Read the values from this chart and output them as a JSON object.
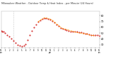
{
  "title_line1": "Milwaukee Weather - Outdoor Temp & Heat Index -",
  "title_line2": "per Minute (24 Hours)",
  "bg_color": "#ffffff",
  "temp_color": "#cc0000",
  "heat_color": "#ff9900",
  "vline_color": "#999999",
  "vline_x": 180,
  "ylim": [
    25,
    88
  ],
  "xlim": [
    0,
    1440
  ],
  "temp_data_x": [
    0,
    15,
    30,
    60,
    90,
    120,
    150,
    180,
    210,
    240,
    270,
    300,
    330,
    360,
    390,
    420,
    450,
    480,
    510,
    540,
    570,
    600,
    630,
    660,
    690,
    720,
    750,
    780,
    810,
    840,
    870,
    900,
    930,
    960,
    990,
    1020,
    1050,
    1080,
    1110,
    1140,
    1170,
    1200,
    1230,
    1260,
    1290,
    1320,
    1350,
    1380,
    1410,
    1440
  ],
  "temp_data_y": [
    54,
    53,
    52,
    50,
    47,
    44,
    41,
    37,
    33,
    30,
    28,
    27,
    28,
    31,
    38,
    46,
    54,
    60,
    65,
    69,
    72,
    74,
    75,
    75,
    74,
    73,
    71,
    68,
    65,
    62,
    59,
    57,
    56,
    55,
    54,
    53,
    53,
    52,
    52,
    51,
    51,
    50,
    49,
    49,
    48,
    47,
    47,
    46,
    46,
    45
  ],
  "heat_data_x": [
    540,
    570,
    600,
    630,
    660,
    690,
    720,
    750,
    780,
    810,
    840,
    870,
    900,
    930,
    960,
    990,
    1020,
    1050,
    1080,
    1110,
    1140,
    1170,
    1200,
    1230,
    1260,
    1290,
    1320,
    1350,
    1380
  ],
  "heat_data_y": [
    69,
    72,
    74,
    76,
    76,
    75,
    74,
    72,
    69,
    66,
    63,
    60,
    58,
    57,
    56,
    55,
    54,
    53,
    52,
    51,
    50,
    50,
    49,
    49,
    48,
    47,
    46,
    46,
    45
  ],
  "ytick_values": [
    30,
    40,
    50,
    60,
    70,
    80
  ],
  "ytick_labels": [
    "30",
    "40",
    "50",
    "60",
    "70",
    "80"
  ],
  "xtick_positions": [
    0,
    60,
    120,
    180,
    240,
    300,
    360,
    420,
    480,
    540,
    600,
    660,
    720,
    780,
    840,
    900,
    960,
    1020,
    1080,
    1140,
    1200,
    1260,
    1320,
    1380,
    1440
  ],
  "xtick_labels": [
    "12\nam",
    "1",
    "2",
    "3",
    "4",
    "5",
    "6",
    "7",
    "8",
    "9",
    "10",
    "11",
    "12\npm",
    "1",
    "2",
    "3",
    "4",
    "5",
    "6",
    "7",
    "8",
    "9",
    "10",
    "11",
    "12\nam"
  ]
}
